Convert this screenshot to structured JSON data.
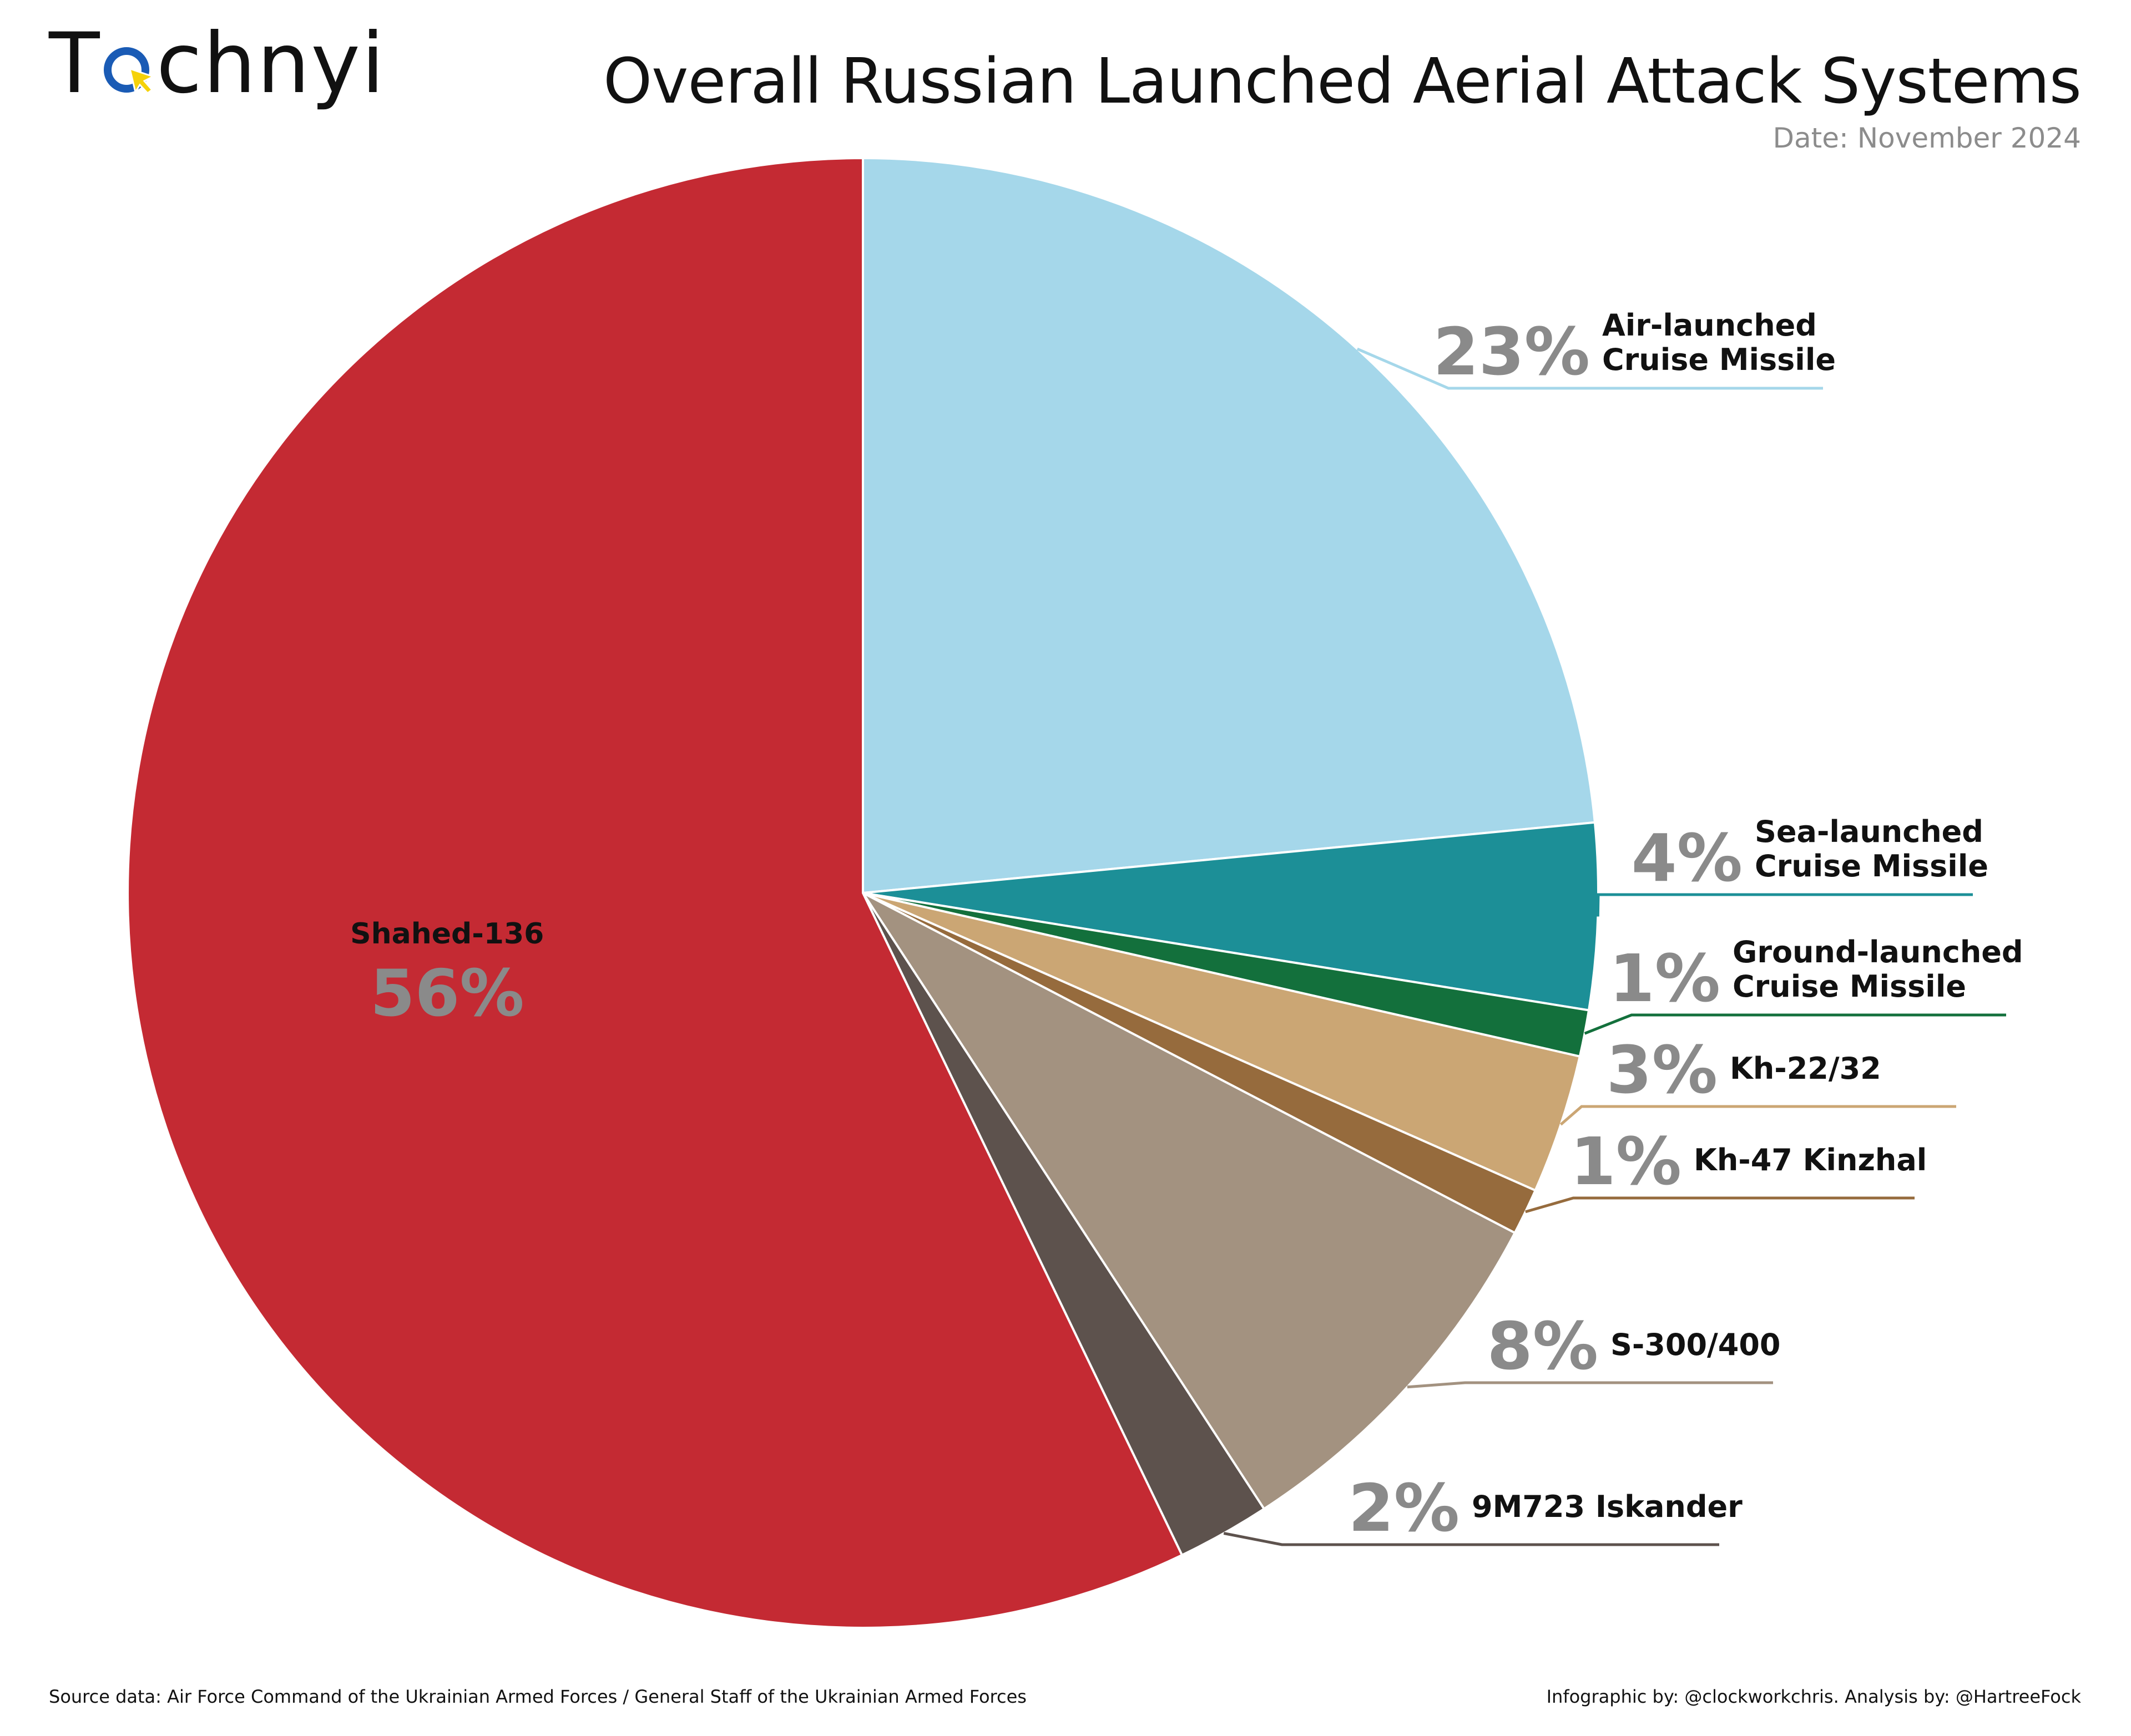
{
  "header": {
    "logo_before": "T",
    "logo_after": "chnyi",
    "title": "Overall Russian Launched Aerial Attack Systems",
    "date": "Date: November 2024"
  },
  "footer": {
    "source": "Source data: Air Force Command of the Ukrainian Armed Forces / General Staff of the Ukrainian Armed Forces",
    "credit": "Infographic by: @clockworkchris. Analysis by: @HartreeFock"
  },
  "colors": {
    "logo_ring": "#1a5bb5",
    "logo_cursor": "#f5d20a"
  },
  "chart_data": {
    "type": "pie",
    "start": "12 o'clock",
    "direction": "clockwise",
    "slices": [
      {
        "label_lines": [
          "Air-launched",
          "Cruise Missile"
        ],
        "value": 23,
        "pct_label": "23%",
        "color": "#a5d7ea"
      },
      {
        "label_lines": [
          "Sea-launched",
          "Cruise Missile"
        ],
        "value": 4,
        "pct_label": "4%",
        "color": "#1c8f97"
      },
      {
        "label_lines": [
          "Ground-launched",
          "Cruise Missile"
        ],
        "value": 1,
        "pct_label": "1%",
        "color": "#13703c"
      },
      {
        "label_lines": [
          "Kh-22/32"
        ],
        "value": 3,
        "pct_label": "3%",
        "color": "#cba674"
      },
      {
        "label_lines": [
          "Kh-47 Kinzhal"
        ],
        "value": 1,
        "pct_label": "1%",
        "color": "#966b3d"
      },
      {
        "label_lines": [
          "S-300/400"
        ],
        "value": 8,
        "pct_label": "8%",
        "color": "#a39280"
      },
      {
        "label_lines": [
          "9M723 Iskander"
        ],
        "value": 2,
        "pct_label": "2%",
        "color": "#5d524d"
      },
      {
        "label_lines": [
          "Shahed-136"
        ],
        "value": 56,
        "pct_label": "56%",
        "color": "#c42a33",
        "label_inside": true
      }
    ]
  }
}
